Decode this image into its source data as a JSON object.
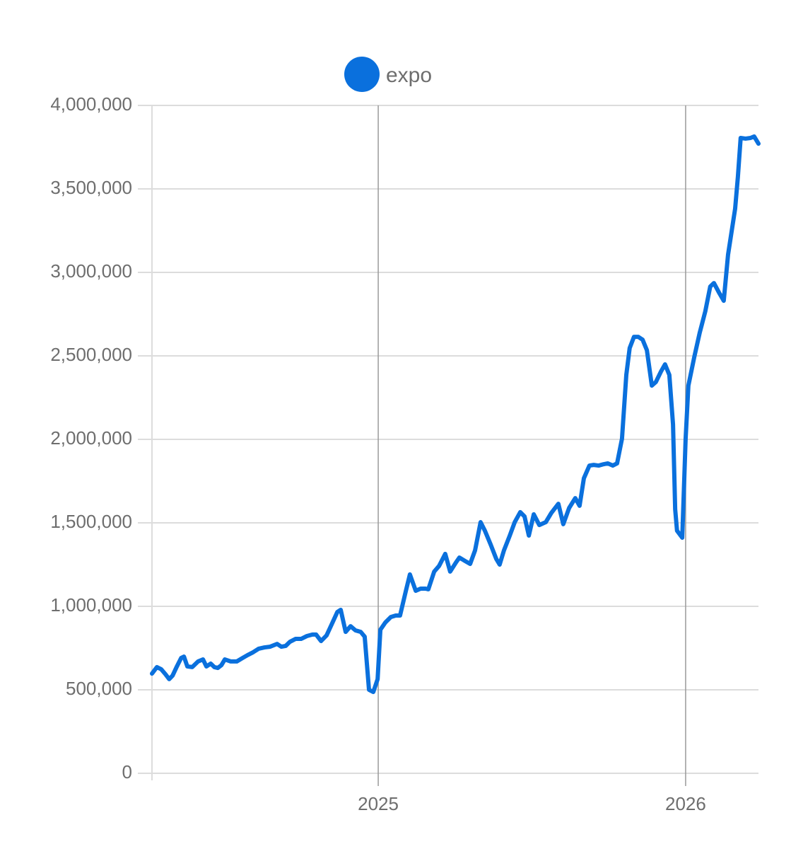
{
  "chart_data": {
    "type": "line",
    "x": [
      2024.264,
      2024.28,
      2024.294,
      2024.308,
      2024.32,
      2024.331,
      2024.345,
      2024.359,
      2024.368,
      2024.379,
      2024.395,
      2024.414,
      2024.43,
      2024.441,
      2024.455,
      2024.467,
      2024.478,
      2024.49,
      2024.501,
      2024.52,
      2024.54,
      2024.559,
      2024.575,
      2024.593,
      2024.611,
      2024.63,
      2024.648,
      2024.671,
      2024.685,
      2024.699,
      2024.713,
      2024.731,
      2024.749,
      2024.768,
      2024.786,
      2024.798,
      2024.814,
      2024.832,
      2024.848,
      2024.867,
      2024.878,
      2024.894,
      2024.91,
      2024.926,
      2024.943,
      2024.956,
      2024.97,
      2024.984,
      2024.998,
      2025.007,
      2025.023,
      2025.041,
      2025.057,
      2025.071,
      2025.09,
      2025.103,
      2025.122,
      2025.138,
      2025.154,
      2025.163,
      2025.182,
      2025.198,
      2025.218,
      2025.234,
      2025.253,
      2025.264,
      2025.283,
      2025.299,
      2025.315,
      2025.333,
      2025.347,
      2025.366,
      2025.384,
      2025.395,
      2025.409,
      2025.428,
      2025.444,
      2025.462,
      2025.476,
      2025.49,
      2025.506,
      2025.524,
      2025.545,
      2025.563,
      2025.586,
      2025.602,
      2025.621,
      2025.641,
      2025.655,
      2025.669,
      2025.687,
      2025.701,
      2025.717,
      2025.733,
      2025.747,
      2025.763,
      2025.777,
      2025.793,
      2025.807,
      2025.818,
      2025.832,
      2025.846,
      2025.86,
      2025.874,
      2025.89,
      2025.903,
      2025.92,
      2025.933,
      2025.947,
      2025.959,
      2025.966,
      2025.972,
      2025.989,
      2026.0,
      2026.009,
      2026.028,
      2026.046,
      2026.064,
      2026.08,
      2026.092,
      2026.108,
      2026.124,
      2026.138,
      2026.161,
      2026.17,
      2026.179,
      2026.195,
      2026.211,
      2026.223,
      2026.237
    ],
    "series": [
      {
        "name": "expo",
        "color": "#0a70dd",
        "values": [
          597000,
          636000,
          623000,
          593000,
          564000,
          585000,
          640000,
          691000,
          699000,
          640000,
          636000,
          670000,
          682000,
          640000,
          657000,
          636000,
          631000,
          648000,
          682000,
          670000,
          670000,
          691000,
          708000,
          725000,
          746000,
          754000,
          758000,
          775000,
          758000,
          763000,
          788000,
          805000,
          805000,
          822000,
          831000,
          831000,
          792000,
          826000,
          890000,
          966000,
          979000,
          847000,
          881000,
          856000,
          847000,
          818000,
          500000,
          487000,
          564000,
          860000,
          903000,
          936000,
          945000,
          945000,
          1093000,
          1191000,
          1093000,
          1106000,
          1106000,
          1102000,
          1208000,
          1242000,
          1314000,
          1208000,
          1263000,
          1292000,
          1271000,
          1254000,
          1335000,
          1504000,
          1453000,
          1369000,
          1284000,
          1250000,
          1335000,
          1424000,
          1504000,
          1564000,
          1538000,
          1424000,
          1551000,
          1487000,
          1504000,
          1559000,
          1614000,
          1492000,
          1589000,
          1648000,
          1602000,
          1767000,
          1843000,
          1847000,
          1843000,
          1851000,
          1856000,
          1843000,
          1856000,
          2004000,
          2386000,
          2547000,
          2614000,
          2614000,
          2597000,
          2534000,
          2322000,
          2343000,
          2407000,
          2449000,
          2386000,
          2089000,
          1581000,
          1453000,
          1411000,
          2004000,
          2322000,
          2492000,
          2640000,
          2767000,
          2915000,
          2936000,
          2881000,
          2830000,
          3106000,
          3381000,
          3572000,
          3805000,
          3801000,
          3805000,
          3814000,
          3771000
        ]
      }
    ],
    "xlim": [
      2024.264,
      2026.237
    ],
    "xticks": [
      2025,
      2026
    ],
    "ylim": [
      0,
      4000000
    ],
    "yticks": [
      0,
      {
        "value": 500000,
        "label": "500,000"
      },
      {
        "value": 1000000,
        "label": "1,000,000"
      },
      {
        "value": 1500000,
        "label": "1,500,000"
      },
      {
        "value": 2000000,
        "label": "2,000,000"
      },
      {
        "value": 2500000,
        "label": "2,500,000"
      },
      {
        "value": 3000000,
        "label": "3,000,000"
      },
      {
        "value": 3500000,
        "label": "3,500,000"
      },
      {
        "value": 4000000,
        "label": "4,000,000"
      }
    ],
    "grid": true,
    "legend": "top"
  }
}
